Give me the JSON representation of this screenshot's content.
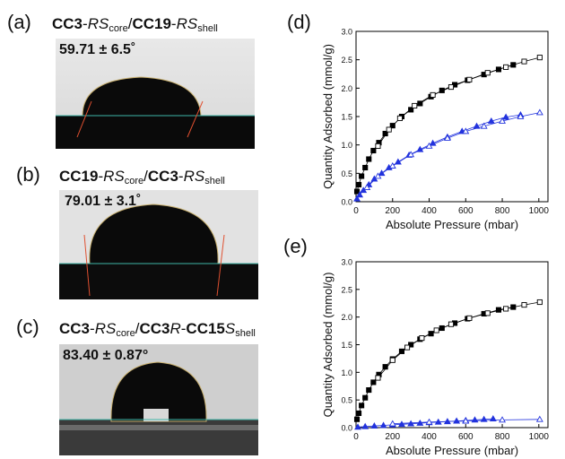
{
  "panels": {
    "a": {
      "letter": "(a)",
      "core_mol": "CC3",
      "core_label": "RS",
      "core_sub": "core",
      "sep": "/",
      "shell_mol": "CC19",
      "shell_label": "RS",
      "shell_sub": "shell",
      "angle": "59.71 ± 6.5˚"
    },
    "b": {
      "letter": "(b)",
      "core_mol": "CC19",
      "core_label": "RS",
      "core_sub": "core",
      "sep": "/",
      "shell_mol": "CC3",
      "shell_label": "RS",
      "shell_sub": "shell",
      "angle": "79.01 ± 3.1˚"
    },
    "c": {
      "letter": "(c)",
      "core_mol": "CC3",
      "core_label": "RS",
      "core_sub": "core",
      "sep": "/",
      "shell_mol_a": "CC3",
      "shell_label_a": "R",
      "shell_mol_b": "CC15",
      "shell_label_b": "S",
      "shell_sub": "shell",
      "angle": "83.40 ± 0.87°"
    },
    "d": {
      "letter": "(d)"
    },
    "e": {
      "letter": "(e)"
    }
  },
  "chart_data": [
    {
      "type": "scatter",
      "panel": "(d)",
      "xlabel": "Absolute Pressure (mbar)",
      "ylabel": "Quantity Adsorbed (mmol/g)",
      "xlim": [
        0,
        1050
      ],
      "ylim": [
        0,
        3.0
      ],
      "xticks": [
        0,
        200,
        400,
        600,
        800,
        1000
      ],
      "yticks": [
        "0.0",
        "0.5",
        "1.0",
        "1.5",
        "2.0",
        "2.5",
        "3.0"
      ],
      "grid": false,
      "series": [
        {
          "color": "#000000",
          "marker": "square-filled",
          "x": [
            5,
            15,
            30,
            50,
            70,
            95,
            125,
            160,
            200,
            250,
            300,
            350,
            410,
            470,
            540,
            610,
            700,
            780,
            860
          ],
          "y": [
            0.18,
            0.3,
            0.45,
            0.6,
            0.75,
            0.9,
            1.04,
            1.2,
            1.34,
            1.5,
            1.62,
            1.73,
            1.85,
            1.96,
            2.06,
            2.14,
            2.24,
            2.33,
            2.41
          ]
        },
        {
          "color": "#000000",
          "marker": "square-open",
          "x": [
            120,
            180,
            240,
            320,
            420,
            520,
            620,
            720,
            820,
            920,
            1005
          ],
          "y": [
            0.98,
            1.27,
            1.47,
            1.69,
            1.88,
            2.02,
            2.15,
            2.27,
            2.37,
            2.47,
            2.54
          ]
        },
        {
          "color": "#2233dd",
          "marker": "triangle-filled",
          "x": [
            5,
            20,
            40,
            70,
            100,
            140,
            180,
            230,
            290,
            350,
            420,
            500,
            580,
            660,
            740,
            820,
            900
          ],
          "y": [
            0.05,
            0.12,
            0.2,
            0.3,
            0.4,
            0.5,
            0.6,
            0.7,
            0.82,
            0.92,
            1.03,
            1.14,
            1.24,
            1.33,
            1.42,
            1.49,
            1.53
          ]
        },
        {
          "color": "#2233dd",
          "marker": "triangle-open",
          "x": [
            60,
            120,
            200,
            300,
            400,
            500,
            600,
            700,
            800,
            900,
            1005
          ],
          "y": [
            0.25,
            0.45,
            0.63,
            0.83,
            0.98,
            1.12,
            1.24,
            1.33,
            1.42,
            1.5,
            1.57
          ]
        }
      ]
    },
    {
      "type": "scatter",
      "panel": "(e)",
      "xlabel": "Absolute Pressure (mbar)",
      "ylabel": "Quantity Adsorbed (mmol/g)",
      "xlim": [
        0,
        1050
      ],
      "ylim": [
        0,
        3.0
      ],
      "xticks": [
        0,
        200,
        400,
        600,
        800,
        1000
      ],
      "yticks": [
        "0.0",
        "0.5",
        "1.0",
        "1.5",
        "2.0",
        "2.5",
        "3.0"
      ],
      "grid": false,
      "series": [
        {
          "color": "#000000",
          "marker": "square-filled",
          "x": [
            5,
            15,
            30,
            50,
            70,
            95,
            125,
            160,
            200,
            250,
            300,
            350,
            410,
            470,
            540,
            610,
            700,
            780,
            860
          ],
          "y": [
            0.15,
            0.26,
            0.4,
            0.54,
            0.68,
            0.82,
            0.96,
            1.1,
            1.24,
            1.38,
            1.5,
            1.6,
            1.7,
            1.8,
            1.89,
            1.97,
            2.06,
            2.13,
            2.18
          ]
        },
        {
          "color": "#000000",
          "marker": "square-open",
          "x": [
            120,
            200,
            280,
            360,
            440,
            520,
            620,
            720,
            820,
            920,
            1005
          ],
          "y": [
            0.9,
            1.22,
            1.45,
            1.62,
            1.76,
            1.87,
            1.98,
            2.07,
            2.15,
            2.22,
            2.27
          ]
        },
        {
          "color": "#2233dd",
          "marker": "triangle-filled",
          "x": [
            10,
            50,
            100,
            150,
            200,
            250,
            300,
            350,
            400,
            450,
            500,
            550,
            600,
            650,
            700,
            750
          ],
          "y": [
            0.01,
            0.02,
            0.03,
            0.04,
            0.05,
            0.06,
            0.07,
            0.08,
            0.09,
            0.1,
            0.11,
            0.12,
            0.13,
            0.14,
            0.15,
            0.16
          ]
        },
        {
          "color": "#2233dd",
          "marker": "triangle-open",
          "x": [
            200,
            400,
            600,
            800,
            1005
          ],
          "y": [
            0.07,
            0.1,
            0.12,
            0.14,
            0.15
          ]
        }
      ]
    }
  ]
}
